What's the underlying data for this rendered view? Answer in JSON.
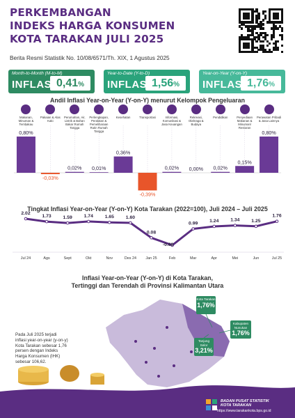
{
  "header": {
    "title_lines": [
      "PERKEMBANGAN",
      "INDEKS HARGA KONSUMEN",
      "KOTA TARAKAN JULI 2025"
    ],
    "subtitle": "Berita Resmi Statistik No. 10/08/6571/Th. XIX, 1 Agustus 2025"
  },
  "badges": [
    {
      "label": "Month-to-Month (M-to-M)",
      "kind": "INFLASI",
      "value": "0,41",
      "unit": "%",
      "color": "#2e8b62"
    },
    {
      "label": "Year-to-Date (Y-to-D)",
      "kind": "INFLASI",
      "value": "1,56",
      "unit": "%",
      "color": "#2aa37b"
    },
    {
      "label": "Year-on-Year (Y-on-Y)",
      "kind": "INFLASI",
      "value": "1,76",
      "unit": "%",
      "color": "#47b99a"
    }
  ],
  "bar_section_title": "Andil Inflasi Year-on-Year (Y-on-Y) menurut Kelompok Pengeluaran",
  "line_section_title": "Tingkat Inflasi Year-on-Year (Y-on-Y) Kota Tarakan (2022=100), Juli 2024 – Juli 2025",
  "map_section": {
    "title_line1": "Inflasi Year-on-Year (Y-on-Y) di Kota Tarakan,",
    "title_line2": "Tertinggi dan Terendah di Provinsi Kalimantan Utara",
    "note": "Pada Juli 2025 terjadi inflasi year-on-year (y-on-y) Kota Tarakan sebesar 1,76 persen dengan Indeks Harga Konsumen (IHK) sebesar 106,62.",
    "pins": [
      {
        "name": "Kota Tarakan",
        "value": "1,76%"
      },
      {
        "name": "Kabupaten Nunukan",
        "value": "1,76%"
      },
      {
        "name": "Tanjung Selor",
        "value": "3,21%"
      }
    ]
  },
  "footer": {
    "org_line1": "BADAN PUSAT STATISTIK",
    "org_line2": "KOTA TARAKAN",
    "website": "https://www.tarakankota.bps.go.id"
  },
  "colors": {
    "purple": "#5a2d82",
    "positive": "#6a3a96",
    "negative": "#e8552a",
    "green": "#2e8b62"
  },
  "chart_data": [
    {
      "type": "bar",
      "title": "Andil Inflasi Year-on-Year (Y-on-Y) menurut Kelompok Pengeluaran",
      "categories": [
        "Makanan, Minuman & Tembakau",
        "Pakaian & Alas Kaki",
        "Perumahan, Air, Listrik & Bahan Bakar Rumah Tangga",
        "Perlengkapan, Peralatan & Pemeliharaan Rutin Rumah Tangga",
        "Kesehatan",
        "Transportasi",
        "Informasi, Komunikasi & Jasa Keuangan",
        "Rekreasi, Olahraga & Budaya",
        "Pendidikan",
        "Penyediaan Makanan & Minuman/ Restoran",
        "Perawatan Pribadi & Jasa Lainnya"
      ],
      "values": [
        0.8,
        -0.03,
        0.02,
        0.01,
        0.36,
        -0.39,
        0.02,
        0.0,
        0.02,
        0.15,
        0.8
      ],
      "labels": [
        "0,80%",
        "-0,03%",
        "0,02%",
        "0,01%",
        "0,36%",
        "-0,39%",
        "0,02%",
        "0,00%",
        "0,02%",
        "0,15%",
        "0,80%"
      ]
    },
    {
      "type": "line",
      "title": "Tingkat Inflasi Year-on-Year (Y-on-Y) Kota Tarakan (2022=100), Juli 2024 – Juli 2025",
      "categories": [
        "Jul 24",
        "Ags",
        "Sept",
        "Okt",
        "Nov",
        "Des 24",
        "Jan 25",
        "Feb",
        "Mar",
        "Apr",
        "Mei",
        "Jun",
        "Jul 25"
      ],
      "values": [
        2.02,
        1.73,
        1.59,
        1.74,
        1.65,
        1.6,
        0.08,
        -0.68,
        0.99,
        1.24,
        1.34,
        1.25,
        1.76
      ],
      "labels": [
        "2.02",
        "1.73",
        "1.59",
        "1.74",
        "1.65",
        "1.60",
        "0.08",
        "-0.68",
        "0.99",
        "1.24",
        "1.34",
        "1.25",
        "1.76"
      ]
    }
  ]
}
